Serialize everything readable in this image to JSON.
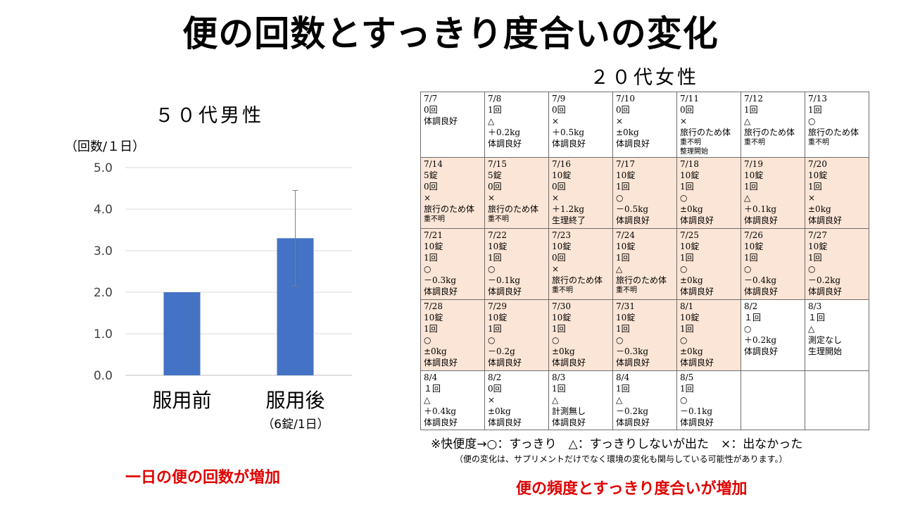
{
  "title": "便の回数とすっきり度合いの変化",
  "chart_data": {
    "type": "bar",
    "title": "５０代男性",
    "ylabel": "（回数/１日）",
    "categories": [
      "服用前",
      "服用後"
    ],
    "values": [
      2.0,
      3.3
    ],
    "error_bars": [
      null,
      [
        2.15,
        4.45
      ]
    ],
    "ylim": [
      0,
      5
    ],
    "yticks": [
      "0.0",
      "1.0",
      "2.0",
      "3.0",
      "4.0",
      "5.0"
    ],
    "grid": true,
    "bar_color": "#4472c4"
  },
  "dose_label": "（6錠/1日）",
  "finding_left": "一日の便の回数が増加",
  "table": {
    "title": "２０代女性",
    "highlight_color": "#fbe5d6",
    "rows": [
      [
        {
          "lines": [
            "7/7",
            "0回",
            "体調良好"
          ]
        },
        {
          "lines": [
            "7/8",
            "1回",
            "△",
            "＋0.2kg",
            "体調良好"
          ]
        },
        {
          "lines": [
            "7/9",
            "0回",
            "×",
            "＋0.5kg",
            "体調良好"
          ]
        },
        {
          "lines": [
            "7/10",
            "0回",
            "×",
            "±0kg",
            "体調良好"
          ]
        },
        {
          "lines": [
            "7/11",
            "0回",
            "×",
            "旅行のため体",
            "重不明",
            "整理開始"
          ]
        },
        {
          "lines": [
            "7/12",
            "1回",
            "△",
            "旅行のため体",
            "重不明"
          ]
        },
        {
          "lines": [
            "7/13",
            "1回",
            "○",
            "旅行のため体",
            "重不明"
          ]
        }
      ],
      [
        {
          "hl": true,
          "lines": [
            "7/14",
            "5錠",
            "0回",
            "×",
            "旅行のため体",
            "重不明"
          ]
        },
        {
          "hl": true,
          "lines": [
            "7/15",
            "5錠",
            "0回",
            "×",
            "旅行のため体",
            "重不明"
          ]
        },
        {
          "hl": true,
          "lines": [
            "7/16",
            "10錠",
            "0回",
            "×",
            "＋1.2kg",
            "生理終了"
          ]
        },
        {
          "hl": true,
          "lines": [
            "7/17",
            "10錠",
            "1回",
            "○",
            "－0.5kg",
            "体調良好"
          ]
        },
        {
          "hl": true,
          "lines": [
            "7/18",
            "10錠",
            "1回",
            "○",
            "±0kg",
            "体調良好"
          ]
        },
        {
          "hl": true,
          "lines": [
            "7/19",
            "10錠",
            "1回",
            "△",
            "＋0.1kg",
            "体調良好"
          ]
        },
        {
          "hl": true,
          "lines": [
            "7/20",
            "10錠",
            "1回",
            "×",
            "±0kg",
            "体調良好"
          ]
        }
      ],
      [
        {
          "hl": true,
          "lines": [
            "7/21",
            "10錠",
            "1回",
            "○",
            "－0.3kg",
            "体調良好"
          ]
        },
        {
          "hl": true,
          "lines": [
            "7/22",
            "10錠",
            "1回",
            "○",
            "－0.1kg",
            "体調良好"
          ]
        },
        {
          "hl": true,
          "lines": [
            "7/23",
            "10錠",
            "0回",
            "×",
            "旅行のため体",
            "重不明"
          ]
        },
        {
          "hl": true,
          "lines": [
            "7/24",
            "10錠",
            "1回",
            "△",
            "旅行のため体",
            "重不明"
          ]
        },
        {
          "hl": true,
          "lines": [
            "7/25",
            "10錠",
            "1回",
            "○",
            "±0kg",
            "体調良好"
          ]
        },
        {
          "hl": true,
          "lines": [
            "7/26",
            "10錠",
            "1回",
            "○",
            "－0.4kg",
            "体調良好"
          ]
        },
        {
          "hl": true,
          "lines": [
            "7/27",
            "10錠",
            "1回",
            "○",
            "－0.2kg",
            "体調良好"
          ]
        }
      ],
      [
        {
          "hl": true,
          "lines": [
            "7/28",
            "10錠",
            "1回",
            "○",
            "±0kg",
            "体調良好"
          ]
        },
        {
          "hl": true,
          "lines": [
            "7/29",
            "10錠",
            "1回",
            "○",
            "－0.2g",
            "体調良好"
          ]
        },
        {
          "hl": true,
          "lines": [
            "7/30",
            "10錠",
            "1回",
            "○",
            "±0kg",
            "体調良好"
          ]
        },
        {
          "hl": true,
          "lines": [
            "7/31",
            "10錠",
            "1回",
            "○",
            "－0.3kg",
            "体調良好"
          ]
        },
        {
          "hl": true,
          "lines": [
            "8/1",
            "10錠",
            "1回",
            "○",
            "±0kg",
            "体調良好"
          ]
        },
        {
          "lines": [
            "8/2",
            "１回",
            "○",
            "＋0.2kg",
            "体調良好"
          ]
        },
        {
          "lines": [
            "8/3",
            "１回",
            "△",
            "測定なし",
            "生理開始"
          ]
        }
      ],
      [
        {
          "lines": [
            "8/4",
            "１回",
            "△",
            "＋0.4kg",
            "体調良好"
          ]
        },
        {
          "lines": [
            "8/2",
            "0回",
            "×",
            "±0kg",
            "体調良好"
          ]
        },
        {
          "lines": [
            "8/3",
            "1回",
            "△",
            "計測無し",
            "体調良好"
          ]
        },
        {
          "lines": [
            "8/4",
            "1回",
            "△",
            "－0.2kg",
            "体調良好"
          ]
        },
        {
          "lines": [
            "8/5",
            "1回",
            "○",
            "－0.1kg",
            "体調良好"
          ]
        },
        {
          "lines": []
        },
        {
          "lines": []
        }
      ]
    ]
  },
  "legend": "※快便度→○：すっきり　△：すっきりしないが出た　×：出なかった",
  "note": "（便の変化は、サプリメントだけでなく環境の変化も関与している可能性があります。）",
  "finding_right": "便の頻度とすっきり度合いが増加"
}
